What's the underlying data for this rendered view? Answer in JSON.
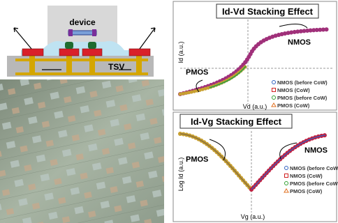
{
  "schematic": {
    "device_label": "device",
    "tsv_label": "TSV"
  },
  "panels": [
    {
      "title": "Id-Vd Stacking Effect",
      "y_label": "Id (a.u.)",
      "x_label": "Vd (a.u.)",
      "annotations": [
        "NMOS",
        "PMOS"
      ],
      "legend": [
        "NMOS (before CoW)",
        "NMOS (CoW)",
        "PMOS (before CoW)",
        "PMOS (CoW)"
      ]
    },
    {
      "title": "Id-Vg Stacking Effect",
      "y_label": "Log Id (a.u.)",
      "x_label": "Vg (a.u.)",
      "annotations": [
        "PMOS",
        "NMOS"
      ],
      "legend": [
        "NMOS (before CoW",
        "NMOS (CoW)",
        "PMOS (before CoW",
        "PMOS (CoW)"
      ]
    }
  ]
}
